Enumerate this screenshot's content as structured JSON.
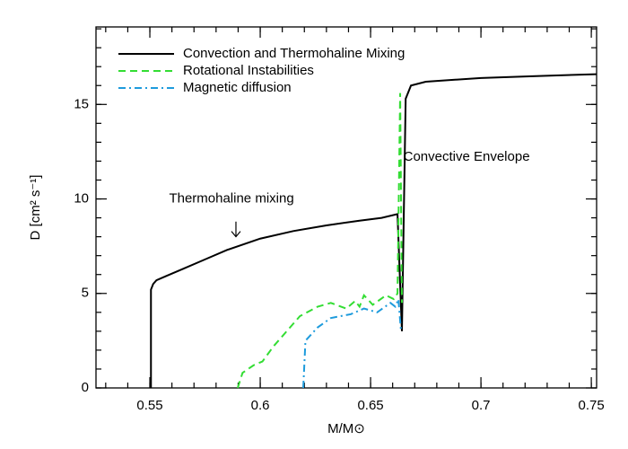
{
  "chart_data": {
    "type": "line",
    "x_label": "M/M⊙",
    "y_label": "D [cm² s⁻¹]",
    "xlim": [
      0.5256,
      0.7524
    ],
    "ylim": [
      0,
      19.1
    ],
    "xticks": [
      0.55,
      0.6,
      0.65,
      0.7,
      0.75
    ],
    "yticks": [
      0,
      5,
      10,
      15
    ],
    "legend": "top-left",
    "series": [
      {
        "name": "Convection and Thermohaline Mixing",
        "color": "#000000",
        "dash": "solid",
        "x": [
          0.5505,
          0.5505,
          0.5515,
          0.553,
          0.557,
          0.565,
          0.575,
          0.585,
          0.6,
          0.615,
          0.63,
          0.645,
          0.655,
          0.6622,
          0.6642,
          0.6659,
          0.6683,
          0.675,
          0.7,
          0.725,
          0.7524
        ],
        "values": [
          0,
          5.2,
          5.5,
          5.7,
          5.9,
          6.3,
          6.8,
          7.3,
          7.9,
          8.3,
          8.6,
          8.85,
          9.0,
          9.2,
          3.0,
          15.3,
          16.0,
          16.2,
          16.4,
          16.5,
          16.6
        ]
      },
      {
        "name": "Rotational Instabilities",
        "color": "#33dd33",
        "dash": "dashed",
        "x": [
          0.5898,
          0.592,
          0.597,
          0.601,
          0.606,
          0.612,
          0.618,
          0.626,
          0.632,
          0.639,
          0.643,
          0.645,
          0.647,
          0.651,
          0.657,
          0.6605,
          0.6622,
          0.6634,
          0.6642
        ],
        "values": [
          0,
          0.8,
          1.2,
          1.4,
          2.2,
          3.0,
          3.8,
          4.3,
          4.5,
          4.2,
          4.6,
          4.3,
          4.9,
          4.4,
          4.9,
          4.7,
          5.0,
          15.6,
          4.5
        ]
      },
      {
        "name": "Magnetic diffusion",
        "color": "#1e9bdc",
        "dash": "dashdot",
        "x": [
          0.6195,
          0.6205,
          0.626,
          0.632,
          0.641,
          0.647,
          0.653,
          0.659,
          0.6612,
          0.6626,
          0.6638
        ],
        "values": [
          0,
          2.5,
          3.2,
          3.7,
          3.9,
          4.2,
          4.0,
          4.5,
          4.3,
          4.7,
          3.0
        ]
      }
    ],
    "annotations": [
      {
        "text": "Thermohaline mixing",
        "x": 0.587,
        "y": 10.0
      },
      {
        "text": "Convective Envelope",
        "x": 0.6935,
        "y": 12.2
      }
    ],
    "arrow": {
      "x": 0.589,
      "y_from": 8.8,
      "y_to": 8.0
    }
  }
}
